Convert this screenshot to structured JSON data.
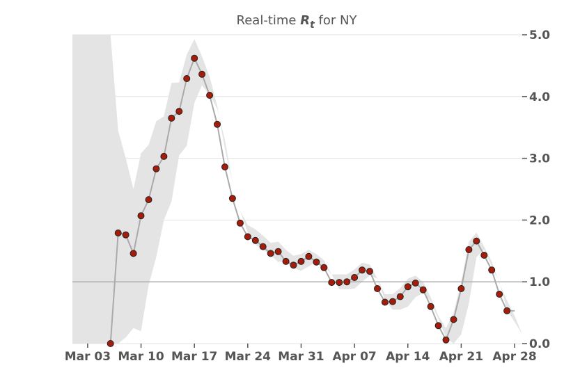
{
  "chart_data": {
    "type": "line",
    "title_prefix": "Real-time ",
    "title_symbol": "R",
    "title_subscript": "t",
    "title_suffix": " for NY",
    "xlabel": "",
    "ylabel": "",
    "start_date": "2020-03-01",
    "xlim": [
      "2020-03-01",
      "2020-04-29"
    ],
    "ylim": [
      0,
      5
    ],
    "yticks": [
      0,
      1,
      2,
      3,
      4,
      5
    ],
    "ytick_labels": [
      "0.0",
      "1.0",
      "2.0",
      "3.0",
      "4.0",
      "5.0"
    ],
    "xticks": [
      "2020-03-03",
      "2020-03-10",
      "2020-03-17",
      "2020-03-24",
      "2020-03-31",
      "2020-04-07",
      "2020-04-14",
      "2020-04-21",
      "2020-04-28"
    ],
    "xtick_labels": [
      "Mar 03",
      "Mar 10",
      "Mar 17",
      "Mar 24",
      "Mar 31",
      "Apr 07",
      "Apr 14",
      "Apr 21",
      "Apr 28"
    ],
    "reference_line": 1.0,
    "grid": "horizontal",
    "y_axis_side": "right",
    "colors": {
      "point_fill": "#a51c0b",
      "point_edge": "#222222",
      "line": "#aaaaaa",
      "band": "#e4e4e4",
      "reference_line": "#999999",
      "grid": "#e3e3e3",
      "text": "#555555"
    },
    "series": [
      {
        "x": [
          "2020-03-06",
          "2020-03-07",
          "2020-03-08",
          "2020-03-09",
          "2020-03-10",
          "2020-03-11",
          "2020-03-12",
          "2020-03-13",
          "2020-03-14",
          "2020-03-15",
          "2020-03-16",
          "2020-03-17",
          "2020-03-18",
          "2020-03-19",
          "2020-03-20",
          "2020-03-21",
          "2020-03-22",
          "2020-03-23",
          "2020-03-24",
          "2020-03-25",
          "2020-03-26",
          "2020-03-27",
          "2020-03-28",
          "2020-03-29",
          "2020-03-30",
          "2020-03-31",
          "2020-04-01",
          "2020-04-02",
          "2020-04-03",
          "2020-04-04",
          "2020-04-05",
          "2020-04-06",
          "2020-04-07",
          "2020-04-08",
          "2020-04-09",
          "2020-04-10",
          "2020-04-11",
          "2020-04-12",
          "2020-04-13",
          "2020-04-14",
          "2020-04-15",
          "2020-04-16",
          "2020-04-17",
          "2020-04-18",
          "2020-04-19",
          "2020-04-20",
          "2020-04-21",
          "2020-04-22",
          "2020-04-23",
          "2020-04-24",
          "2020-04-25",
          "2020-04-26",
          "2020-04-27",
          "2020-04-28"
        ],
        "y": [
          0.0,
          1.79,
          1.76,
          1.46,
          2.07,
          2.33,
          2.83,
          3.03,
          3.65,
          3.76,
          4.29,
          4.62,
          4.36,
          4.02,
          3.55,
          2.86,
          2.35,
          1.95,
          1.73,
          1.67,
          1.57,
          1.46,
          1.49,
          1.33,
          1.27,
          1.33,
          1.41,
          1.32,
          1.23,
          0.99,
          0.99,
          1.0,
          1.07,
          1.19,
          1.17,
          0.89,
          0.67,
          0.68,
          0.76,
          0.92,
          0.98,
          0.87,
          0.6,
          0.29,
          0.06,
          0.39,
          0.89,
          1.52,
          1.66,
          1.43,
          1.19,
          0.8,
          0.53,
          0.53
        ],
        "lower": [
          0.0,
          0.0,
          0.1,
          0.25,
          0.2,
          0.95,
          1.4,
          2.0,
          2.3,
          3.05,
          3.2,
          3.9,
          4.18,
          4.03,
          3.8,
          3.3,
          2.6,
          2.15,
          1.8,
          1.6,
          1.52,
          1.43,
          1.32,
          1.33,
          1.22,
          1.18,
          1.25,
          1.33,
          1.25,
          1.12,
          0.88,
          0.88,
          0.89,
          1.0,
          1.1,
          1.05,
          0.7,
          0.55,
          0.55,
          0.6,
          0.75,
          0.82,
          0.68,
          0.4,
          0.1,
          0.0,
          0.15,
          0.65,
          1.4,
          1.52,
          1.25,
          1.0,
          0.55,
          0.35
        ]
      }
    ],
    "upper": [
      5.0,
      3.45,
      3.0,
      2.5,
      3.08,
      3.22,
      3.6,
      3.68,
      4.22,
      4.23,
      4.68,
      4.93,
      4.65,
      4.32,
      3.85,
      3.15,
      2.6,
      2.15,
      1.92,
      1.85,
      1.75,
      1.63,
      1.65,
      1.52,
      1.42,
      1.45,
      1.52,
      1.45,
      1.35,
      1.12,
      1.12,
      1.12,
      1.2,
      1.31,
      1.28,
      1.05,
      0.8,
      0.8,
      0.9,
      1.05,
      1.1,
      1.0,
      0.75,
      0.45,
      0.25,
      0.5,
      1.0,
      1.65,
      1.8,
      1.57,
      1.33,
      0.98,
      0.7,
      0.45
    ]
  }
}
